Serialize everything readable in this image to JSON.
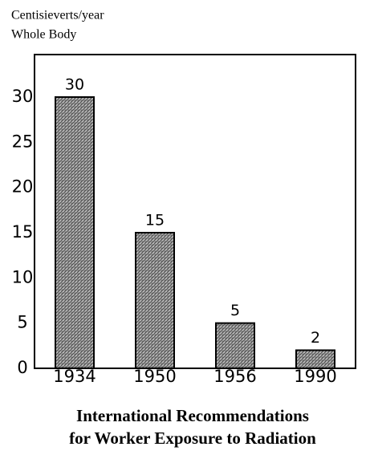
{
  "chart_data": {
    "type": "bar",
    "title": [
      "International Recommendations",
      "for Worker Exposure to Radiation"
    ],
    "y_label": [
      "Centisieverts/year",
      "Whole Body"
    ],
    "categories": [
      "1934",
      "1950",
      "1956",
      "1990"
    ],
    "values": [
      30,
      15,
      5,
      2
    ],
    "color": "#8a8a8a",
    "ylim": [
      0,
      34.7
    ],
    "yticks": [
      0,
      5,
      10,
      15,
      20,
      25,
      30
    ],
    "grid": false
  }
}
